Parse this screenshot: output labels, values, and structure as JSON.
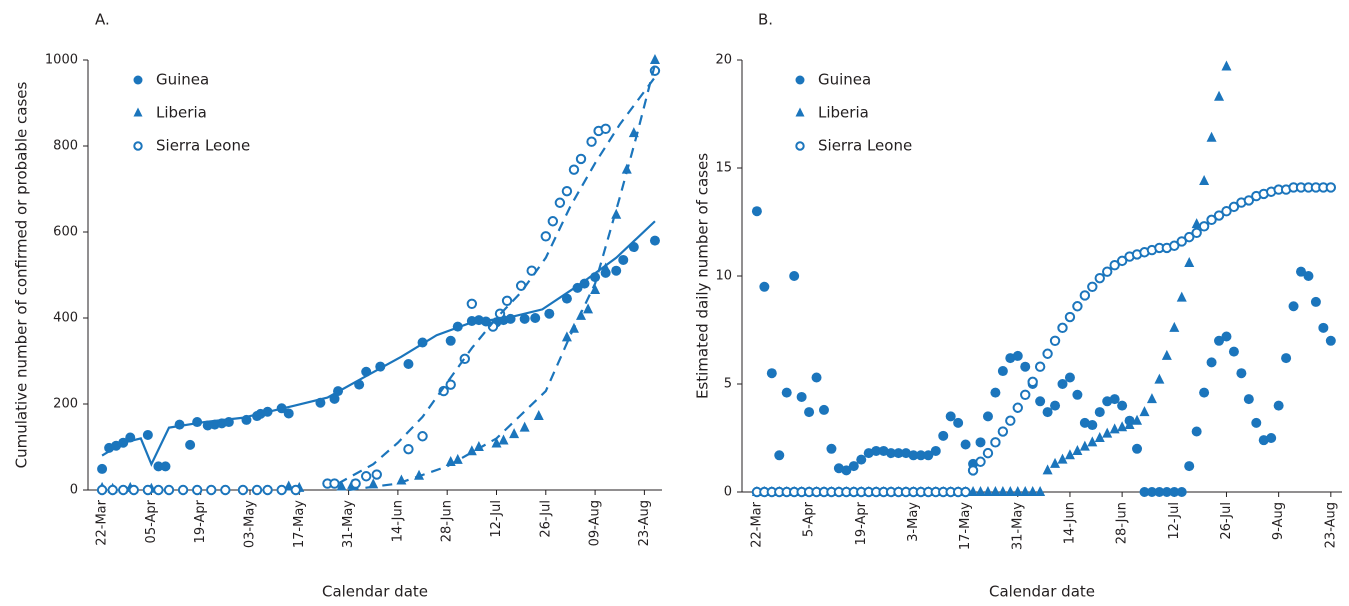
{
  "chart_data": [
    {
      "type": "scatter",
      "label": "A.",
      "xlabel": "Calendar date",
      "ylabel": "Cumulative number of confirmed or probable cases",
      "xlim": [
        "18-Mar",
        "28-Aug"
      ],
      "ylim": [
        0,
        1000
      ],
      "xticks": [
        "22-Mar",
        "05-Apr",
        "19-Apr",
        "03-May",
        "17-May",
        "31-May",
        "14-Jun",
        "28-Jun",
        "12-Jul",
        "26-Jul",
        "09-Aug",
        "23-Aug"
      ],
      "yticks": [
        0,
        200,
        400,
        600,
        800,
        1000
      ],
      "legend": "upper left",
      "series": [
        {
          "name": "Guinea",
          "color": "#1b75bc",
          "marker": "circle",
          "x": [
            "22-Mar",
            "24-Mar",
            "26-Mar",
            "28-Mar",
            "30-Mar",
            "04-Apr",
            "07-Apr",
            "09-Apr",
            "13-Apr",
            "16-Apr",
            "18-Apr",
            "21-Apr",
            "23-Apr",
            "25-Apr",
            "27-Apr",
            "02-May",
            "05-May",
            "06-May",
            "08-May",
            "12-May",
            "14-May",
            "23-May",
            "27-May",
            "28-May",
            "03-Jun",
            "05-Jun",
            "09-Jun",
            "17-Jun",
            "21-Jun",
            "29-Jun",
            "01-Jul",
            "05-Jul",
            "07-Jul",
            "09-Jul",
            "12-Jul",
            "14-Jul",
            "16-Jul",
            "20-Jul",
            "23-Jul",
            "27-Jul",
            "01-Aug",
            "04-Aug",
            "06-Aug",
            "09-Aug",
            "12-Aug",
            "15-Aug",
            "17-Aug",
            "20-Aug",
            "26-Aug"
          ],
          "values": [
            49,
            98,
            103,
            110,
            122,
            128,
            55,
            55,
            152,
            105,
            158,
            150,
            152,
            155,
            158,
            163,
            172,
            177,
            182,
            190,
            178,
            203,
            212,
            230,
            245,
            275,
            287,
            293,
            343,
            347,
            380,
            393,
            395,
            392,
            390,
            395,
            398,
            398,
            400,
            410,
            445,
            470,
            480,
            495,
            505,
            510,
            535,
            565,
            580
          ]
        },
        {
          "name": "Liberia",
          "color": "#1b75bc",
          "marker": "triangle",
          "x": [
            "22-Mar",
            "25-Mar",
            "30-Mar",
            "05-Apr",
            "14-May",
            "17-May",
            "29-May",
            "01-Jun",
            "07-Jun",
            "15-Jun",
            "20-Jun",
            "29-Jun",
            "01-Jul",
            "05-Jul",
            "07-Jul",
            "12-Jul",
            "14-Jul",
            "17-Jul",
            "20-Jul",
            "24-Jul",
            "01-Aug",
            "03-Aug",
            "05-Aug",
            "07-Aug",
            "09-Aug",
            "12-Aug",
            "15-Aug",
            "18-Aug",
            "20-Aug",
            "26-Aug"
          ],
          "values": [
            5,
            3,
            5,
            3,
            8,
            5,
            8,
            12,
            13,
            22,
            33,
            65,
            70,
            90,
            100,
            108,
            115,
            130,
            145,
            172,
            355,
            375,
            405,
            420,
            465,
            515,
            640,
            745,
            830,
            1000
          ]
        },
        {
          "name": "Sierra Leone",
          "color": "#1b75bc",
          "marker": "open-circle",
          "x": [
            "22-Mar",
            "25-Mar",
            "28-Mar",
            "31-Mar",
            "04-Apr",
            "07-Apr",
            "10-Apr",
            "14-Apr",
            "18-Apr",
            "22-Apr",
            "26-Apr",
            "01-May",
            "05-May",
            "08-May",
            "12-May",
            "16-May",
            "25-May",
            "27-May",
            "02-Jun",
            "05-Jun",
            "08-Jun",
            "17-Jun",
            "21-Jun",
            "27-Jun",
            "29-Jun",
            "03-Jul",
            "05-Jul",
            "11-Jul",
            "13-Jul",
            "15-Jul",
            "19-Jul",
            "22-Jul",
            "26-Jul",
            "28-Jul",
            "30-Jul",
            "01-Aug",
            "03-Aug",
            "05-Aug",
            "08-Aug",
            "10-Aug",
            "12-Aug",
            "26-Aug"
          ],
          "values": [
            0,
            0,
            0,
            0,
            0,
            0,
            0,
            0,
            0,
            0,
            0,
            0,
            0,
            0,
            0,
            0,
            15,
            15,
            15,
            32,
            36,
            95,
            125,
            230,
            245,
            305,
            433,
            380,
            410,
            440,
            475,
            510,
            590,
            625,
            668,
            695,
            745,
            770,
            810,
            835,
            840,
            975
          ]
        },
        {
          "color": "#1b75bc",
          "marker": "none",
          "style": "solid",
          "x": [
            "22-Mar",
            "28-Mar",
            "02-Apr",
            "05-Apr",
            "10-Apr",
            "20-Apr",
            "01-May",
            "15-May",
            "25-May",
            "05-Jun",
            "15-Jun",
            "25-Jun",
            "05-Jul",
            "15-Jul",
            "25-Jul",
            "05-Aug",
            "15-Aug",
            "26-Aug"
          ],
          "values": [
            80,
            110,
            120,
            60,
            145,
            158,
            168,
            195,
            215,
            265,
            310,
            360,
            390,
            400,
            420,
            480,
            540,
            625
          ]
        },
        {
          "color": "#1b75bc",
          "marker": "none",
          "style": "dashed",
          "x": [
            "31-May",
            "14-Jun",
            "28-Jun",
            "12-Jul",
            "26-Jul",
            "02-Aug",
            "09-Aug",
            "16-Aug",
            "21-Aug",
            "26-Aug"
          ],
          "values": [
            0,
            15,
            55,
            120,
            230,
            360,
            480,
            680,
            830,
            990
          ]
        },
        {
          "color": "#1b75bc",
          "marker": "none",
          "style": "dashed",
          "x": [
            "28-May",
            "07-Jun",
            "14-Jun",
            "21-Jun",
            "28-Jun",
            "05-Jul",
            "12-Jul",
            "19-Jul",
            "26-Jul",
            "02-Aug",
            "09-Aug",
            "16-Aug",
            "26-Aug"
          ],
          "values": [
            15,
            60,
            110,
            170,
            250,
            330,
            400,
            460,
            540,
            660,
            760,
            850,
            960
          ]
        }
      ]
    },
    {
      "type": "scatter",
      "label": "B.",
      "xlabel": "Calendar date",
      "ylabel": "Estimated daily number of cases",
      "xlim": [
        "18-Mar",
        "26-Aug"
      ],
      "ylim": [
        0,
        20
      ],
      "xticks": [
        "22-Mar",
        "5-Apr",
        "19-Apr",
        "3-May",
        "17-May",
        "31-May",
        "14-Jun",
        "28-Jun",
        "12-Jul",
        "26-Jul",
        "9-Aug",
        "23-Aug"
      ],
      "yticks": [
        0,
        5,
        10,
        15,
        20
      ],
      "legend": "upper left",
      "x": [
        "22-Mar",
        "24-Mar",
        "26-Mar",
        "28-Mar",
        "30-Mar",
        "1-Apr",
        "3-Apr",
        "5-Apr",
        "7-Apr",
        "9-Apr",
        "11-Apr",
        "13-Apr",
        "15-Apr",
        "17-Apr",
        "19-Apr",
        "21-Apr",
        "23-Apr",
        "25-Apr",
        "27-Apr",
        "29-Apr",
        "1-May",
        "3-May",
        "5-May",
        "7-May",
        "9-May",
        "11-May",
        "13-May",
        "15-May",
        "17-May",
        "19-May",
        "21-May",
        "23-May",
        "25-May",
        "27-May",
        "29-May",
        "31-May",
        "2-Jun",
        "4-Jun",
        "6-Jun",
        "8-Jun",
        "10-Jun",
        "12-Jun",
        "14-Jun",
        "16-Jun",
        "18-Jun",
        "20-Jun",
        "22-Jun",
        "24-Jun",
        "26-Jun",
        "28-Jun",
        "30-Jun",
        "2-Jul",
        "4-Jul",
        "6-Jul",
        "8-Jul",
        "10-Jul",
        "12-Jul",
        "14-Jul",
        "16-Jul",
        "18-Jul",
        "20-Jul",
        "22-Jul",
        "24-Jul",
        "26-Jul",
        "28-Jul",
        "30-Jul",
        "1-Aug",
        "3-Aug",
        "5-Aug",
        "7-Aug",
        "9-Aug",
        "11-Aug",
        "13-Aug",
        "15-Aug",
        "17-Aug",
        "19-Aug",
        "21-Aug",
        "23-Aug"
      ],
      "series": [
        {
          "name": "Guinea",
          "color": "#1b75bc",
          "marker": "circle",
          "values": [
            13,
            9.5,
            5.5,
            1.7,
            4.6,
            10.0,
            4.4,
            3.7,
            5.3,
            3.8,
            2.0,
            1.1,
            1.0,
            1.2,
            1.5,
            1.8,
            1.9,
            1.9,
            1.8,
            1.8,
            1.8,
            1.7,
            1.7,
            1.7,
            1.9,
            2.6,
            3.5,
            3.2,
            2.2,
            1.3,
            2.3,
            3.5,
            4.6,
            5.6,
            6.2,
            6.3,
            5.8,
            5.0,
            4.2,
            3.7,
            4.0,
            5.0,
            5.3,
            4.5,
            3.2,
            3.1,
            3.7,
            4.2,
            4.3,
            4.0,
            3.3,
            2.0,
            0,
            0,
            0,
            0,
            0,
            0,
            1.2,
            2.8,
            4.6,
            6.0,
            7.0,
            7.2,
            6.5,
            5.5,
            4.3,
            3.2,
            2.4,
            2.5,
            4.0,
            6.2,
            8.6,
            10.2,
            10.0,
            8.8,
            7.6,
            7.0
          ]
        },
        {
          "name": "Liberia",
          "color": "#1b75bc",
          "marker": "triangle",
          "values": [
            0,
            0,
            0,
            0,
            0,
            0,
            0,
            0,
            0,
            0,
            0,
            0,
            0,
            0,
            0,
            0,
            0,
            0,
            0,
            0,
            0,
            0,
            0,
            0,
            0,
            0,
            0,
            0,
            0,
            0,
            0,
            0,
            0,
            0,
            0,
            0,
            0,
            0,
            0,
            1.0,
            1.3,
            1.5,
            1.7,
            1.9,
            2.1,
            2.3,
            2.5,
            2.7,
            2.9,
            3.0,
            3.1,
            3.3,
            3.7,
            4.3,
            5.2,
            6.3,
            7.6,
            9.0,
            10.6,
            12.4,
            14.4,
            16.4,
            18.3,
            19.7,
            null,
            null,
            null,
            null,
            null,
            null,
            null,
            null,
            null,
            null,
            null,
            null,
            null,
            null
          ]
        },
        {
          "name": "Sierra Leone",
          "color": "#1b75bc",
          "marker": "open-circle",
          "values": [
            0,
            0,
            0,
            0,
            0,
            0,
            0,
            0,
            0,
            0,
            0,
            0,
            0,
            0,
            0,
            0,
            0,
            0,
            0,
            0,
            0,
            0,
            0,
            0,
            0,
            0,
            0,
            0,
            0,
            1.0,
            1.4,
            1.8,
            2.3,
            2.8,
            3.3,
            3.9,
            4.5,
            5.1,
            5.8,
            6.4,
            7.0,
            7.6,
            8.1,
            8.6,
            9.1,
            9.5,
            9.9,
            10.2,
            10.5,
            10.7,
            10.9,
            11.0,
            11.1,
            11.2,
            11.3,
            11.3,
            11.4,
            11.6,
            11.8,
            12.0,
            12.3,
            12.6,
            12.8,
            13.0,
            13.2,
            13.4,
            13.5,
            13.7,
            13.8,
            13.9,
            14.0,
            14.0,
            14.1,
            14.1,
            14.1,
            14.1,
            14.1,
            14.1
          ]
        }
      ]
    }
  ]
}
